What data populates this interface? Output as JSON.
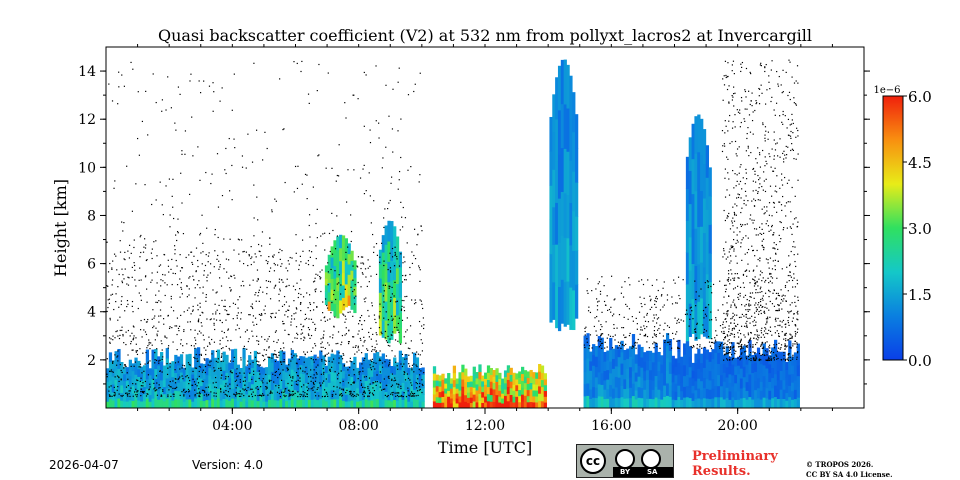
{
  "chart_data": {
    "type": "heatmap",
    "title": "Quasi backscatter coefficient (V2) at 532 nm from pollyxt_lacros2 at Invercargill",
    "xlabel": "Time [UTC]",
    "ylabel": "Height [km]",
    "xlim_hours": [
      0,
      24
    ],
    "ylim_km": [
      0,
      15
    ],
    "x_ticks": [
      {
        "hour": 4,
        "label": "04:00"
      },
      {
        "hour": 8,
        "label": "08:00"
      },
      {
        "hour": 12,
        "label": "12:00"
      },
      {
        "hour": 16,
        "label": "16:00"
      },
      {
        "hour": 20,
        "label": "20:00"
      }
    ],
    "y_ticks": [
      {
        "km": 2,
        "label": "2"
      },
      {
        "km": 4,
        "label": "4"
      },
      {
        "km": 6,
        "label": "6"
      },
      {
        "km": 8,
        "label": "8"
      },
      {
        "km": 10,
        "label": "10"
      },
      {
        "km": 12,
        "label": "12"
      },
      {
        "km": 14,
        "label": "14"
      }
    ],
    "colorbar": {
      "exponent_label": "1e−6",
      "range": [
        0,
        6
      ],
      "ticks": [
        {
          "value": 0.0,
          "label": "0.0"
        },
        {
          "value": 1.5,
          "label": "1.5"
        },
        {
          "value": 3.0,
          "label": "3.0"
        },
        {
          "value": 4.5,
          "label": "4.5"
        },
        {
          "value": 6.0,
          "label": "6.0"
        }
      ],
      "colors": [
        "#0a3fe8",
        "#0a7fe0",
        "#14c8c8",
        "#30e060",
        "#e8ec18",
        "#f89010",
        "#f0200c"
      ]
    },
    "data_end_hour": 21.9,
    "gaps_hours": [
      [
        10.05,
        10.25
      ],
      [
        14.93,
        15.07
      ]
    ],
    "regions": [
      {
        "name": "boundary-layer",
        "start_h": 0.0,
        "end_h": 10.05,
        "top_km": 2.2,
        "level": 0.3
      },
      {
        "name": "cloud-07h",
        "start_h": 6.9,
        "end_h": 7.9,
        "bottom_km": 4.0,
        "top_km": 7.2,
        "level": 0.6
      },
      {
        "name": "cloud-09h",
        "start_h": 8.6,
        "end_h": 9.3,
        "bottom_km": 3.0,
        "top_km": 7.8,
        "level": 0.5
      },
      {
        "name": "low-cloud-12h",
        "start_h": 10.3,
        "end_h": 13.9,
        "top_km": 1.6,
        "level": 0.85
      },
      {
        "name": "cirrus-14h",
        "start_h": 14.0,
        "end_h": 14.9,
        "bottom_km": 3.5,
        "top_km": 14.5,
        "level": 0.25
      },
      {
        "name": "bl-16h",
        "start_h": 15.1,
        "end_h": 17.9,
        "top_km": 2.8,
        "level": 0.2
      },
      {
        "name": "cirrus-19h",
        "start_h": 18.3,
        "end_h": 19.1,
        "bottom_km": 2.8,
        "top_km": 12.2,
        "level": 0.25
      },
      {
        "name": "bl-20h",
        "start_h": 17.9,
        "end_h": 21.9,
        "top_km": 2.5,
        "level": 0.15
      }
    ]
  },
  "footer": {
    "date": "2026-04-07",
    "version": "Version: 4.0",
    "preliminary_line1": "Preliminary",
    "preliminary_line2": "Results.",
    "copyright_line1": "© TROPOS 2026.",
    "copyright_line2": "CC BY SA 4.0 License.",
    "license_by": "BY",
    "license_sa": "SA",
    "license_cc": "cc"
  },
  "colors": {
    "preliminary": "#e8302a"
  }
}
